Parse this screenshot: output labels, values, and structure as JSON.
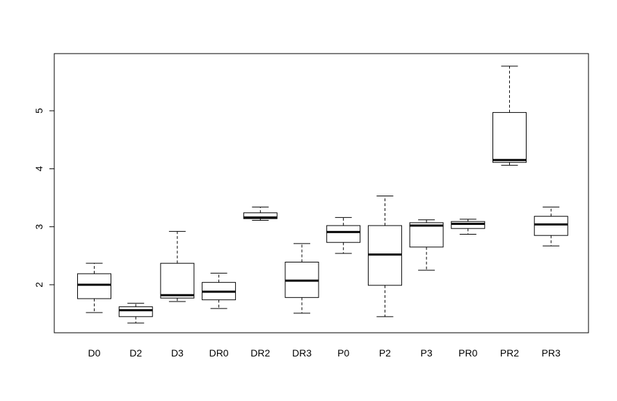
{
  "chart_data": {
    "type": "boxplot",
    "title": "",
    "xlabel": "",
    "ylabel": "",
    "ylim": [
      1.2,
      6.0
    ],
    "yticks": [
      2,
      3,
      4,
      5
    ],
    "ytick_labels": [
      "2",
      "3",
      "4",
      "5"
    ],
    "categories": [
      "D0",
      "D2",
      "D3",
      "DR0",
      "DR2",
      "DR3",
      "P0",
      "P2",
      "P3",
      "PR0",
      "PR2",
      "PR3"
    ],
    "boxes": [
      {
        "min": 1.52,
        "q1": 1.76,
        "median": 2.0,
        "q3": 2.19,
        "max": 2.37
      },
      {
        "min": 1.34,
        "q1": 1.45,
        "median": 1.56,
        "q3": 1.62,
        "max": 1.68
      },
      {
        "min": 1.71,
        "q1": 1.77,
        "median": 1.82,
        "q3": 2.37,
        "max": 2.92
      },
      {
        "min": 1.59,
        "q1": 1.74,
        "median": 1.88,
        "q3": 2.04,
        "max": 2.2
      },
      {
        "min": 3.11,
        "q1": 3.14,
        "median": 3.16,
        "q3": 3.24,
        "max": 3.34
      },
      {
        "min": 1.51,
        "q1": 1.78,
        "median": 2.07,
        "q3": 2.39,
        "max": 2.71
      },
      {
        "min": 2.54,
        "q1": 2.73,
        "median": 2.91,
        "q3": 3.02,
        "max": 3.16
      },
      {
        "min": 1.45,
        "q1": 1.99,
        "median": 2.52,
        "q3": 3.02,
        "max": 3.53
      },
      {
        "min": 2.25,
        "q1": 2.65,
        "median": 3.02,
        "q3": 3.07,
        "max": 3.12
      },
      {
        "min": 2.87,
        "q1": 2.97,
        "median": 3.05,
        "q3": 3.09,
        "max": 3.13
      },
      {
        "min": 4.06,
        "q1": 4.11,
        "median": 4.15,
        "q3": 4.97,
        "max": 5.77
      },
      {
        "min": 2.67,
        "q1": 2.85,
        "median": 3.04,
        "q3": 3.18,
        "max": 3.34
      }
    ],
    "grid": false,
    "legend": "none"
  }
}
